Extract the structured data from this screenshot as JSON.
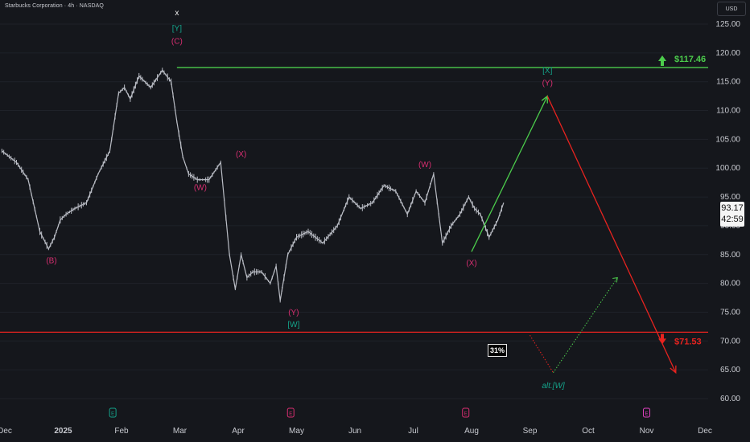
{
  "header": {
    "title": "Starbucks Corporation · 4h · NASDAQ",
    "currency": "USD"
  },
  "price": {
    "last": "93.17",
    "countdown": "42:59"
  },
  "probability_badge": "31%",
  "colors": {
    "background": "#15171c",
    "candles": "#b9bcc4",
    "bull": "#4ccd4c",
    "bear": "#e8231f",
    "wave_magenta": "#d92e71",
    "wave_teal": "#14a38a",
    "grid": "#1f2229",
    "axis_text": "#c8cad0"
  },
  "chart_data": {
    "type": "line",
    "y_axis": {
      "ticks": [
        "60.00",
        "65.00",
        "70.00",
        "75.00",
        "80.00",
        "85.00",
        "90.00",
        "95.00",
        "100.00",
        "105.00",
        "110.00",
        "115.00",
        "120.00",
        "125.00"
      ],
      "range": [
        57,
        128
      ]
    },
    "x_axis": {
      "ticks": [
        "Dec",
        "2025",
        "Feb",
        "Mar",
        "Apr",
        "May",
        "Jun",
        "Jul",
        "Aug",
        "Sep",
        "Oct",
        "Nov",
        "Dec"
      ],
      "range_months": [
        0,
        12.4
      ]
    },
    "levels": [
      {
        "label": "$117.46",
        "value": 117.46,
        "direction": "up"
      },
      {
        "label": "$71.53",
        "value": 71.53,
        "direction": "down"
      }
    ],
    "price_series": {
      "x": [
        -0.05,
        0.2,
        0.4,
        0.6,
        0.75,
        0.85,
        0.95,
        1.05,
        1.2,
        1.4,
        1.6,
        1.8,
        1.95,
        2.05,
        2.15,
        2.3,
        2.5,
        2.7,
        2.85,
        2.95,
        3.05,
        3.15,
        3.3,
        3.5,
        3.7,
        3.85,
        3.95,
        4.05,
        4.15,
        4.25,
        4.4,
        4.55,
        4.65,
        4.72,
        4.85,
        5.0,
        5.2,
        5.45,
        5.7,
        5.9,
        6.1,
        6.3,
        6.5,
        6.7,
        6.9,
        7.05,
        7.2,
        7.35,
        7.5,
        7.65,
        7.8,
        7.95,
        8.05,
        8.15,
        8.3,
        8.45,
        8.55
      ],
      "y": [
        103,
        101,
        98,
        89,
        86,
        88,
        91,
        92,
        93,
        94,
        99,
        103,
        113,
        114,
        112,
        116,
        114,
        117,
        115,
        108,
        102,
        99,
        98,
        98,
        101,
        85,
        79,
        85,
        81,
        82,
        82,
        80,
        83,
        77,
        85,
        88,
        89,
        87,
        90,
        95,
        93,
        94,
        97,
        96,
        92,
        96,
        94,
        99,
        87,
        90,
        92,
        95,
        93,
        92,
        88,
        91,
        94
      ]
    },
    "projections": [
      {
        "name": "",
        "points": [
          [
            8.0,
            85.5
          ],
          [
            9.3,
            112.5
          ]
        ],
        "style": "solid",
        "color": "bull"
      },
      {
        "name": "",
        "points": [
          [
            9.3,
            112.5
          ],
          [
            11.5,
            64.5
          ]
        ],
        "style": "solid",
        "color": "bear"
      },
      {
        "name": "",
        "points": [
          [
            9.0,
            71.0
          ],
          [
            9.4,
            64.5
          ],
          [
            10.5,
            81.0
          ]
        ],
        "style": "dotted",
        "color": "alt"
      }
    ],
    "wave_labels": [
      {
        "text": "x",
        "x": 2.95,
        "y": 126.5,
        "color": "white"
      },
      {
        "text": "[Y]",
        "x": 2.95,
        "y": 123.8,
        "color": "teal"
      },
      {
        "text": "(C)",
        "x": 2.95,
        "y": 121.6,
        "color": "magenta"
      },
      {
        "text": "(B)",
        "x": 0.8,
        "y": 83.5,
        "color": "magenta"
      },
      {
        "text": "(W)",
        "x": 3.35,
        "y": 96.2,
        "color": "magenta"
      },
      {
        "text": "(X)",
        "x": 4.05,
        "y": 102.0,
        "color": "magenta"
      },
      {
        "text": "(Y)",
        "x": 4.95,
        "y": 74.5,
        "color": "magenta"
      },
      {
        "text": "[W]",
        "x": 4.95,
        "y": 72.4,
        "color": "teal"
      },
      {
        "text": "(W)",
        "x": 7.2,
        "y": 100.2,
        "color": "magenta"
      },
      {
        "text": "(X)",
        "x": 8.0,
        "y": 83.1,
        "color": "magenta"
      },
      {
        "text": "[X]",
        "x": 9.3,
        "y": 116.5,
        "color": "teal"
      },
      {
        "text": "(Y)",
        "x": 9.3,
        "y": 114.3,
        "color": "magenta"
      },
      {
        "text": "alt.[W]",
        "x": 9.4,
        "y": 61.8,
        "color": "teal_italic"
      }
    ],
    "event_markers": [
      {
        "type": "earnings",
        "x": 1.85,
        "color": "teal",
        "glyph": "E"
      },
      {
        "type": "earnings",
        "x": 4.9,
        "color": "magenta",
        "glyph": "E"
      },
      {
        "type": "earnings",
        "x": 7.9,
        "color": "magenta",
        "glyph": "E"
      },
      {
        "type": "dividend",
        "x": 11.0,
        "color": "pink",
        "glyph": "E"
      }
    ]
  }
}
